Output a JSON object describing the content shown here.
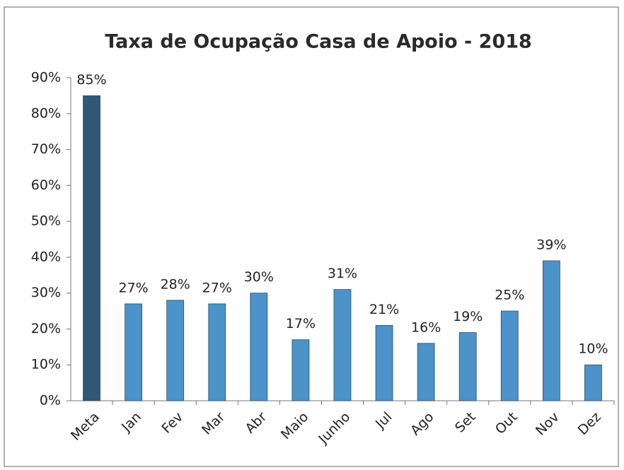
{
  "chart_data": {
    "type": "bar",
    "title": "Taxa de Ocupação Casa de Apoio - 2018",
    "categories": [
      "Meta",
      "Jan",
      "Fev",
      "Mar",
      "Abr",
      "Maio",
      "Junho",
      "Jul",
      "Ago",
      "Set",
      "Out",
      "Nov",
      "Dez"
    ],
    "values": [
      85,
      27,
      28,
      27,
      30,
      17,
      31,
      21,
      16,
      19,
      25,
      39,
      10
    ],
    "value_labels": [
      "85%",
      "27%",
      "28%",
      "27%",
      "30%",
      "17%",
      "31%",
      "21%",
      "16%",
      "19%",
      "25%",
      "39%",
      "10%"
    ],
    "colors": [
      "#2f5878",
      "#4b93c9",
      "#4b93c9",
      "#4b93c9",
      "#4b93c9",
      "#4b93c9",
      "#4b93c9",
      "#4b93c9",
      "#4b93c9",
      "#4b93c9",
      "#4b93c9",
      "#4b93c9",
      "#4b93c9"
    ],
    "ylim": [
      0,
      90
    ],
    "yticks": [
      {
        "value": 0,
        "label": "0%"
      },
      {
        "value": 10,
        "label": "10%"
      },
      {
        "value": 20,
        "label": "20%"
      },
      {
        "value": 30,
        "label": "30%"
      },
      {
        "value": 40,
        "label": "40%"
      },
      {
        "value": 50,
        "label": "50%"
      },
      {
        "value": 60,
        "label": "60%"
      },
      {
        "value": 70,
        "label": "70%"
      },
      {
        "value": 80,
        "label": "80%"
      },
      {
        "value": 90,
        "label": "90%"
      }
    ],
    "grid": false
  }
}
